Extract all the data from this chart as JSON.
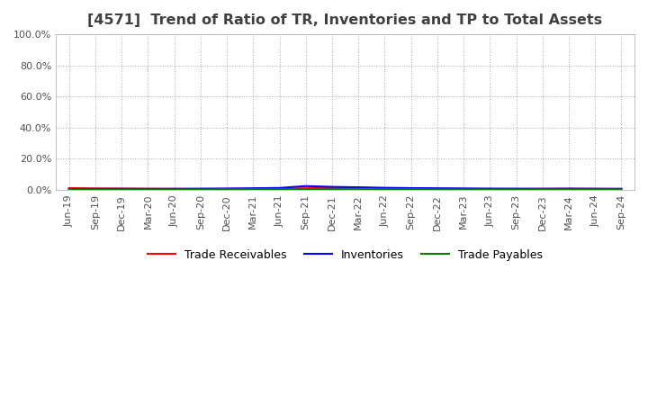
{
  "title": "[4571]  Trend of Ratio of TR, Inventories and TP to Total Assets",
  "title_color": "#404040",
  "title_fontsize": 11.5,
  "ylim": [
    0.0,
    1.0
  ],
  "yticks": [
    0.0,
    0.2,
    0.4,
    0.6,
    0.8,
    1.0
  ],
  "ytick_labels": [
    "0.0%",
    "20.0%",
    "40.0%",
    "60.0%",
    "80.0%",
    "100.0%"
  ],
  "x_labels": [
    "Jun-19",
    "Sep-19",
    "Dec-19",
    "Mar-20",
    "Jun-20",
    "Sep-20",
    "Dec-20",
    "Mar-21",
    "Jun-21",
    "Sep-21",
    "Dec-21",
    "Mar-22",
    "Jun-22",
    "Sep-22",
    "Dec-22",
    "Mar-23",
    "Jun-23",
    "Sep-23",
    "Dec-23",
    "Mar-24",
    "Jun-24",
    "Sep-24"
  ],
  "trade_receivables": [
    0.012,
    0.01,
    0.009,
    0.008,
    0.0075,
    0.006,
    0.0065,
    0.007,
    0.008,
    0.011,
    0.013,
    0.015,
    0.01,
    0.008,
    0.0065,
    0.006,
    0.0055,
    0.006,
    0.007,
    0.008,
    0.007,
    0.0065
  ],
  "inventories": [
    0.006,
    0.007,
    0.0075,
    0.007,
    0.0075,
    0.0085,
    0.0095,
    0.011,
    0.013,
    0.025,
    0.02,
    0.017,
    0.014,
    0.012,
    0.011,
    0.01,
    0.009,
    0.0085,
    0.008,
    0.0085,
    0.008,
    0.0075
  ],
  "trade_payables": [
    0.0035,
    0.0035,
    0.003,
    0.003,
    0.0035,
    0.004,
    0.0045,
    0.005,
    0.0055,
    0.006,
    0.0065,
    0.007,
    0.0055,
    0.005,
    0.004,
    0.004,
    0.0035,
    0.0035,
    0.004,
    0.004,
    0.0038,
    0.0035
  ],
  "tr_color": "#FF0000",
  "inv_color": "#0000FF",
  "tp_color": "#008000",
  "line_width": 1.5,
  "grid_color": "#AAAAAA",
  "background_color": "#FFFFFF",
  "legend_labels": [
    "Trade Receivables",
    "Inventories",
    "Trade Payables"
  ],
  "legend_fontsize": 9,
  "tick_fontsize": 8,
  "fig_width": 7.2,
  "fig_height": 4.4,
  "dpi": 100
}
